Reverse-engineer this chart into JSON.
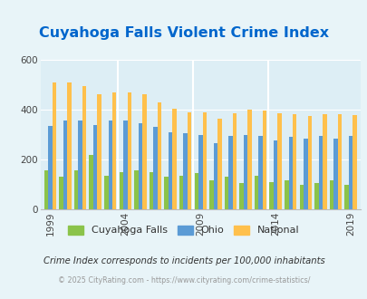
{
  "title": "Cuyahoga Falls Violent Crime Index",
  "title_color": "#0066cc",
  "subtitle": "Crime Index corresponds to incidents per 100,000 inhabitants",
  "footer": "© 2025 CityRating.com - https://www.cityrating.com/crime-statistics/",
  "years": [
    1999,
    2000,
    2001,
    2002,
    2003,
    2004,
    2005,
    2006,
    2007,
    2008,
    2009,
    2010,
    2011,
    2012,
    2013,
    2014,
    2015,
    2016,
    2017,
    2018,
    2019
  ],
  "cuyahoga": [
    155,
    130,
    155,
    220,
    135,
    150,
    155,
    150,
    130,
    135,
    145,
    115,
    130,
    105,
    135,
    110,
    115,
    100,
    105,
    115,
    100
  ],
  "ohio": [
    335,
    355,
    355,
    340,
    355,
    355,
    345,
    330,
    310,
    305,
    300,
    265,
    295,
    300,
    295,
    275,
    290,
    285,
    295,
    285,
    295
  ],
  "national": [
    510,
    510,
    495,
    460,
    470,
    470,
    460,
    430,
    405,
    390,
    390,
    365,
    385,
    400,
    395,
    385,
    380,
    375,
    380,
    380,
    378
  ],
  "bar_width": 0.27,
  "colors": {
    "cuyahoga": "#8bc34a",
    "ohio": "#5b9bd5",
    "national": "#ffc04c"
  },
  "bg_color": "#e8f4f8",
  "plot_bg": "#ddeef5",
  "ylim": [
    0,
    600
  ],
  "yticks": [
    0,
    200,
    400,
    600
  ],
  "xtick_years": [
    1999,
    2004,
    2009,
    2014,
    2019
  ],
  "legend_labels": [
    "Cuyahoga Falls",
    "Ohio",
    "National"
  ],
  "subtitle_color": "#333333",
  "footer_color": "#999999"
}
